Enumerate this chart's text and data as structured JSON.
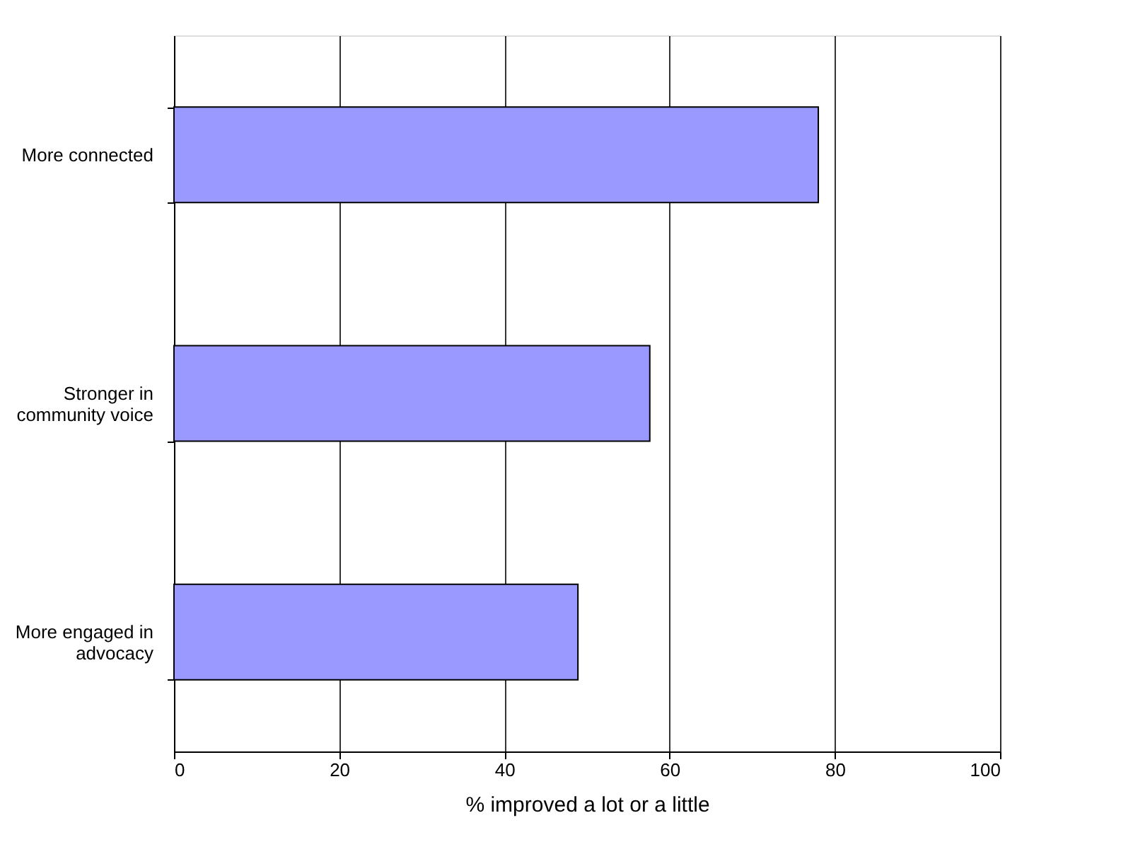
{
  "chart_data": {
    "type": "bar",
    "orientation": "horizontal",
    "categories": [
      "More connected",
      "Stronger in community voice",
      "More engaged in advocacy"
    ],
    "values": [
      78,
      57.6,
      48.9
    ],
    "color": "#9999ff",
    "xlabel": "% improved a lot or a little",
    "xlim": [
      0,
      100
    ],
    "xticks": [
      0,
      20,
      40,
      60,
      80,
      100
    ],
    "grid": "x"
  }
}
